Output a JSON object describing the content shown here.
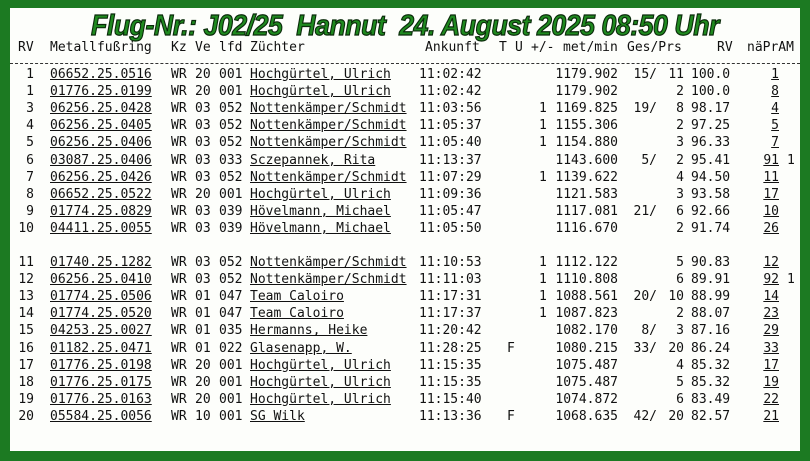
{
  "title": "Flug-Nr.: J02/25  Hannut  24. August 2025 08:50 Uhr",
  "colors": {
    "frame": "#1c7a22",
    "title": "#1f8a1f",
    "link": "#1a1aa6"
  },
  "headers": {
    "rv": "RV",
    "ring": "Metallfußring",
    "kz": "Kz",
    "ve": "Ve",
    "lfd": "lfd",
    "name": "Züchter",
    "time": "Ankunft",
    "t": "T",
    "u": "U",
    "pm": "+/-",
    "speed": "met/min",
    "gesprs": "Ges/Prs",
    "rv2": "RV",
    "naepr": "näPrAM"
  },
  "rows": [
    {
      "rv": "1",
      "ring": "06652.25.0516",
      "kz": "WR",
      "ve": "20",
      "lfd": "001",
      "name": "Hochgürtel, Ulrich",
      "time": "11:02:42",
      "t": "",
      "pm": "",
      "speed": "1179.902",
      "ges": "15/",
      "prs": "11",
      "pct": "100.0",
      "link": "1",
      "extra": ""
    },
    {
      "rv": "1",
      "ring": "01776.25.0199",
      "kz": "WR",
      "ve": "20",
      "lfd": "001",
      "name": "Hochgürtel, Ulrich",
      "time": "11:02:42",
      "t": "",
      "pm": "",
      "speed": "1179.902",
      "ges": "",
      "prs": "2",
      "pct": "100.0",
      "link": "8",
      "extra": ""
    },
    {
      "rv": "3",
      "ring": "06256.25.0428",
      "kz": "WR",
      "ve": "03",
      "lfd": "052",
      "name": "Nottenkämper/Schmidt",
      "time": "11:03:56",
      "t": "",
      "pm": "1",
      "speed": "1169.825",
      "ges": "19/",
      "prs": "8",
      "pct": "98.17",
      "link": "4",
      "extra": ""
    },
    {
      "rv": "4",
      "ring": "06256.25.0405",
      "kz": "WR",
      "ve": "03",
      "lfd": "052",
      "name": "Nottenkämper/Schmidt",
      "time": "11:05:37",
      "t": "",
      "pm": "1",
      "speed": "1155.306",
      "ges": "",
      "prs": "2",
      "pct": "97.25",
      "link": "5",
      "extra": ""
    },
    {
      "rv": "5",
      "ring": "06256.25.0406",
      "kz": "WR",
      "ve": "03",
      "lfd": "052",
      "name": "Nottenkämper/Schmidt",
      "time": "11:05:40",
      "t": "",
      "pm": "1",
      "speed": "1154.880",
      "ges": "",
      "prs": "3",
      "pct": "96.33",
      "link": "7",
      "extra": ""
    },
    {
      "rv": "6",
      "ring": "03087.25.0406",
      "kz": "WR",
      "ve": "03",
      "lfd": "033",
      "name": "Sczepannek, Rita",
      "time": "11:13:37",
      "t": "",
      "pm": "",
      "speed": "1143.600",
      "ges": "5/",
      "prs": "2",
      "pct": "95.41",
      "link": "91",
      "extra": "1"
    },
    {
      "rv": "7",
      "ring": "06256.25.0426",
      "kz": "WR",
      "ve": "03",
      "lfd": "052",
      "name": "Nottenkämper/Schmidt",
      "time": "11:07:29",
      "t": "",
      "pm": "1",
      "speed": "1139.622",
      "ges": "",
      "prs": "4",
      "pct": "94.50",
      "link": "11",
      "extra": ""
    },
    {
      "rv": "8",
      "ring": "06652.25.0522",
      "kz": "WR",
      "ve": "20",
      "lfd": "001",
      "name": "Hochgürtel, Ulrich",
      "time": "11:09:36",
      "t": "",
      "pm": "",
      "speed": "1121.583",
      "ges": "",
      "prs": "3",
      "pct": "93.58",
      "link": "17",
      "extra": ""
    },
    {
      "rv": "9",
      "ring": "01774.25.0829",
      "kz": "WR",
      "ve": "03",
      "lfd": "039",
      "name": "Hövelmann, Michael",
      "time": "11:05:47",
      "t": "",
      "pm": "",
      "speed": "1117.081",
      "ges": "21/",
      "prs": "6",
      "pct": "92.66",
      "link": "10",
      "extra": ""
    },
    {
      "rv": "10",
      "ring": "04411.25.0055",
      "kz": "WR",
      "ve": "03",
      "lfd": "039",
      "name": "Hövelmann, Michael",
      "time": "11:05:50",
      "t": "",
      "pm": "",
      "speed": "1116.670",
      "ges": "",
      "prs": "2",
      "pct": "91.74",
      "link": "26",
      "extra": ""
    },
    {
      "rv": "11",
      "ring": "01740.25.1282",
      "kz": "WR",
      "ve": "03",
      "lfd": "052",
      "name": "Nottenkämper/Schmidt",
      "time": "11:10:53",
      "t": "",
      "pm": "1",
      "speed": "1112.122",
      "ges": "",
      "prs": "5",
      "pct": "90.83",
      "link": "12",
      "extra": ""
    },
    {
      "rv": "12",
      "ring": "06256.25.0410",
      "kz": "WR",
      "ve": "03",
      "lfd": "052",
      "name": "Nottenkämper/Schmidt",
      "time": "11:11:03",
      "t": "",
      "pm": "1",
      "speed": "1110.808",
      "ges": "",
      "prs": "6",
      "pct": "89.91",
      "link": "92",
      "extra": "1"
    },
    {
      "rv": "13",
      "ring": "01774.25.0506",
      "kz": "WR",
      "ve": "01",
      "lfd": "047",
      "name": "Team Caloiro",
      "time": "11:17:31",
      "t": "",
      "pm": "1",
      "speed": "1088.561",
      "ges": "20/",
      "prs": "10",
      "pct": "88.99",
      "link": "14",
      "extra": ""
    },
    {
      "rv": "14",
      "ring": "01774.25.0520",
      "kz": "WR",
      "ve": "01",
      "lfd": "047",
      "name": "Team Caloiro",
      "time": "11:17:37",
      "t": "",
      "pm": "1",
      "speed": "1087.823",
      "ges": "",
      "prs": "2",
      "pct": "88.07",
      "link": "23",
      "extra": ""
    },
    {
      "rv": "15",
      "ring": "04253.25.0027",
      "kz": "WR",
      "ve": "01",
      "lfd": "035",
      "name": "Hermanns, Heike",
      "time": "11:20:42",
      "t": "",
      "pm": "",
      "speed": "1082.170",
      "ges": "8/",
      "prs": "3",
      "pct": "87.16",
      "link": "29",
      "extra": ""
    },
    {
      "rv": "16",
      "ring": "01182.25.0471",
      "kz": "WR",
      "ve": "01",
      "lfd": "022",
      "name": "Glasenapp, W.",
      "time": "11:28:25",
      "t": "F",
      "pm": "",
      "speed": "1080.215",
      "ges": "33/",
      "prs": "20",
      "pct": "86.24",
      "link": "33",
      "extra": ""
    },
    {
      "rv": "17",
      "ring": "01776.25.0198",
      "kz": "WR",
      "ve": "20",
      "lfd": "001",
      "name": "Hochgürtel, Ulrich",
      "time": "11:15:35",
      "t": "",
      "pm": "",
      "speed": "1075.487",
      "ges": "",
      "prs": "4",
      "pct": "85.32",
      "link": "17",
      "extra": ""
    },
    {
      "rv": "18",
      "ring": "01776.25.0175",
      "kz": "WR",
      "ve": "20",
      "lfd": "001",
      "name": "Hochgürtel, Ulrich",
      "time": "11:15:35",
      "t": "",
      "pm": "",
      "speed": "1075.487",
      "ges": "",
      "prs": "5",
      "pct": "85.32",
      "link": "19",
      "extra": ""
    },
    {
      "rv": "19",
      "ring": "01776.25.0163",
      "kz": "WR",
      "ve": "20",
      "lfd": "001",
      "name": "Hochgürtel, Ulrich",
      "time": "11:15:40",
      "t": "",
      "pm": "",
      "speed": "1074.872",
      "ges": "",
      "prs": "6",
      "pct": "83.49",
      "link": "22",
      "extra": ""
    },
    {
      "rv": "20",
      "ring": "05584.25.0056",
      "kz": "WR",
      "ve": "10",
      "lfd": "001",
      "name": "SG Wilk",
      "time": "11:13:36",
      "t": "F",
      "pm": "",
      "speed": "1068.635",
      "ges": "42/",
      "prs": "20",
      "pct": "82.57",
      "link": "21",
      "extra": ""
    }
  ]
}
